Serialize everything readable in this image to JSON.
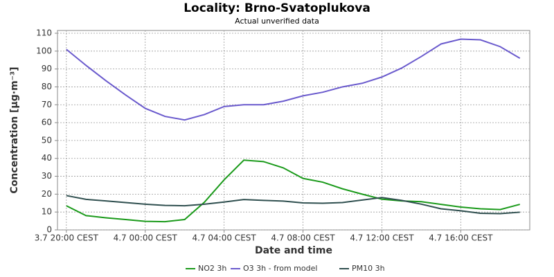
{
  "chart_data": {
    "type": "line",
    "title": "Locality: Brno-Svatoplukova",
    "subtitle": "Actual unverified data",
    "x_label": "Date and time",
    "y_label": "Concentration [µg·m⁻³]",
    "categories": [
      "3.7 20:00 CEST",
      null,
      null,
      null,
      "4.7 00:00 CEST",
      null,
      null,
      null,
      "4.7 04:00 CEST",
      null,
      null,
      null,
      "4.7 08:00 CEST",
      null,
      null,
      null,
      "4.7 12:00 CEST",
      null,
      null,
      null,
      "4.7 16:00 CEST",
      null,
      null,
      null
    ],
    "series": [
      {
        "name": "NO2 3h",
        "color": "#1a9a1a",
        "values": [
          13.5,
          8,
          6.8,
          5.8,
          4.8,
          4.6,
          5.8,
          15.5,
          28,
          39,
          38.2,
          34.7,
          28.8,
          26.7,
          23,
          20,
          17.2,
          16.2,
          15.8,
          14.3,
          12.8,
          11.8,
          11.4,
          14.3
        ]
      },
      {
        "name": "O3 3h - from model",
        "color": "#6a5acd",
        "values": [
          101,
          92,
          83.5,
          75.5,
          68,
          63.5,
          61.5,
          64.5,
          69,
          70,
          70,
          72,
          75,
          77,
          80,
          82,
          85.5,
          90.5,
          97,
          104,
          106.7,
          106.3,
          102.5,
          96
        ]
      },
      {
        "name": "PM10 3h",
        "color": "#2f4f4f",
        "values": [
          19.2,
          17.1,
          16.2,
          15.3,
          14.4,
          13.7,
          13.5,
          14.4,
          15.6,
          17,
          16.5,
          16.1,
          15.1,
          14.9,
          15.3,
          16.7,
          18.1,
          16.5,
          14.4,
          11.8,
          10.7,
          9.3,
          9.1,
          9.9
        ]
      }
    ],
    "ylim": [
      0,
      110
    ],
    "yticks": [
      0,
      10,
      20,
      30,
      40,
      50,
      60,
      70,
      80,
      90,
      100,
      110
    ],
    "grid": true
  }
}
